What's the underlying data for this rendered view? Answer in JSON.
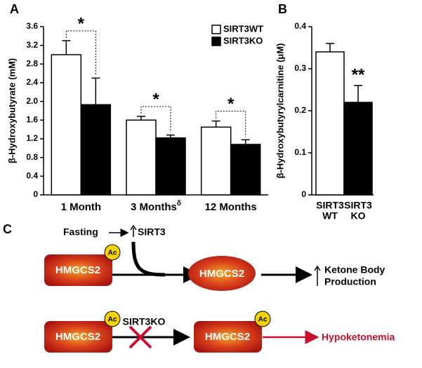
{
  "chart_data": [
    {
      "type": "bar",
      "panel": "A",
      "y_label": "β-Hydroxybutyrate (mM)",
      "categories": [
        "1 Month",
        "3 Months",
        "12 Months"
      ],
      "category_superscripts": [
        null,
        "δ",
        null
      ],
      "significance": [
        "*",
        "*",
        "*"
      ],
      "series": [
        {
          "name": "SIRT3WT",
          "color": "#ffffff",
          "values": [
            3.0,
            1.6,
            1.45
          ],
          "errors": [
            0.3,
            0.08,
            0.13
          ]
        },
        {
          "name": "SIRT3KO",
          "color": "#000000",
          "values": [
            1.93,
            1.22,
            1.08
          ],
          "errors": [
            0.57,
            0.06,
            0.1
          ]
        }
      ],
      "ylim": [
        0,
        3.6
      ],
      "yticks": [
        0,
        0.4,
        0.8,
        1.2,
        1.6,
        {
          "value": 2,
          "label": "2.0"
        },
        2.4,
        2.8,
        3.2,
        3.6
      ],
      "legend": "top-right"
    },
    {
      "type": "bar",
      "panel": "B",
      "y_label": "β-Hydroxybutyrylcarnitine (μM)",
      "categories": [
        [
          "SIRT3",
          "WT"
        ],
        [
          "SIRT3",
          "KO"
        ]
      ],
      "significance": [
        null,
        "**"
      ],
      "colors": [
        "#ffffff",
        "#000000"
      ],
      "values": [
        0.34,
        0.22
      ],
      "errors": [
        0.02,
        0.04
      ],
      "ylim": [
        0,
        0.4
      ],
      "yticks": [
        0,
        0.1,
        0.2,
        0.3,
        0.4
      ]
    }
  ],
  "diagram": {
    "panel": "C",
    "trigger": "Fasting",
    "effect": "SIRT3",
    "modification": "Ac",
    "nodes": [
      "HMGCS2",
      "HMGCS2",
      "HMGCS2",
      "HMGCS2"
    ],
    "outcome": [
      "Ketone Body",
      "Production"
    ],
    "knockout": "SIRT3KO",
    "result": "Hypoketonemia"
  }
}
